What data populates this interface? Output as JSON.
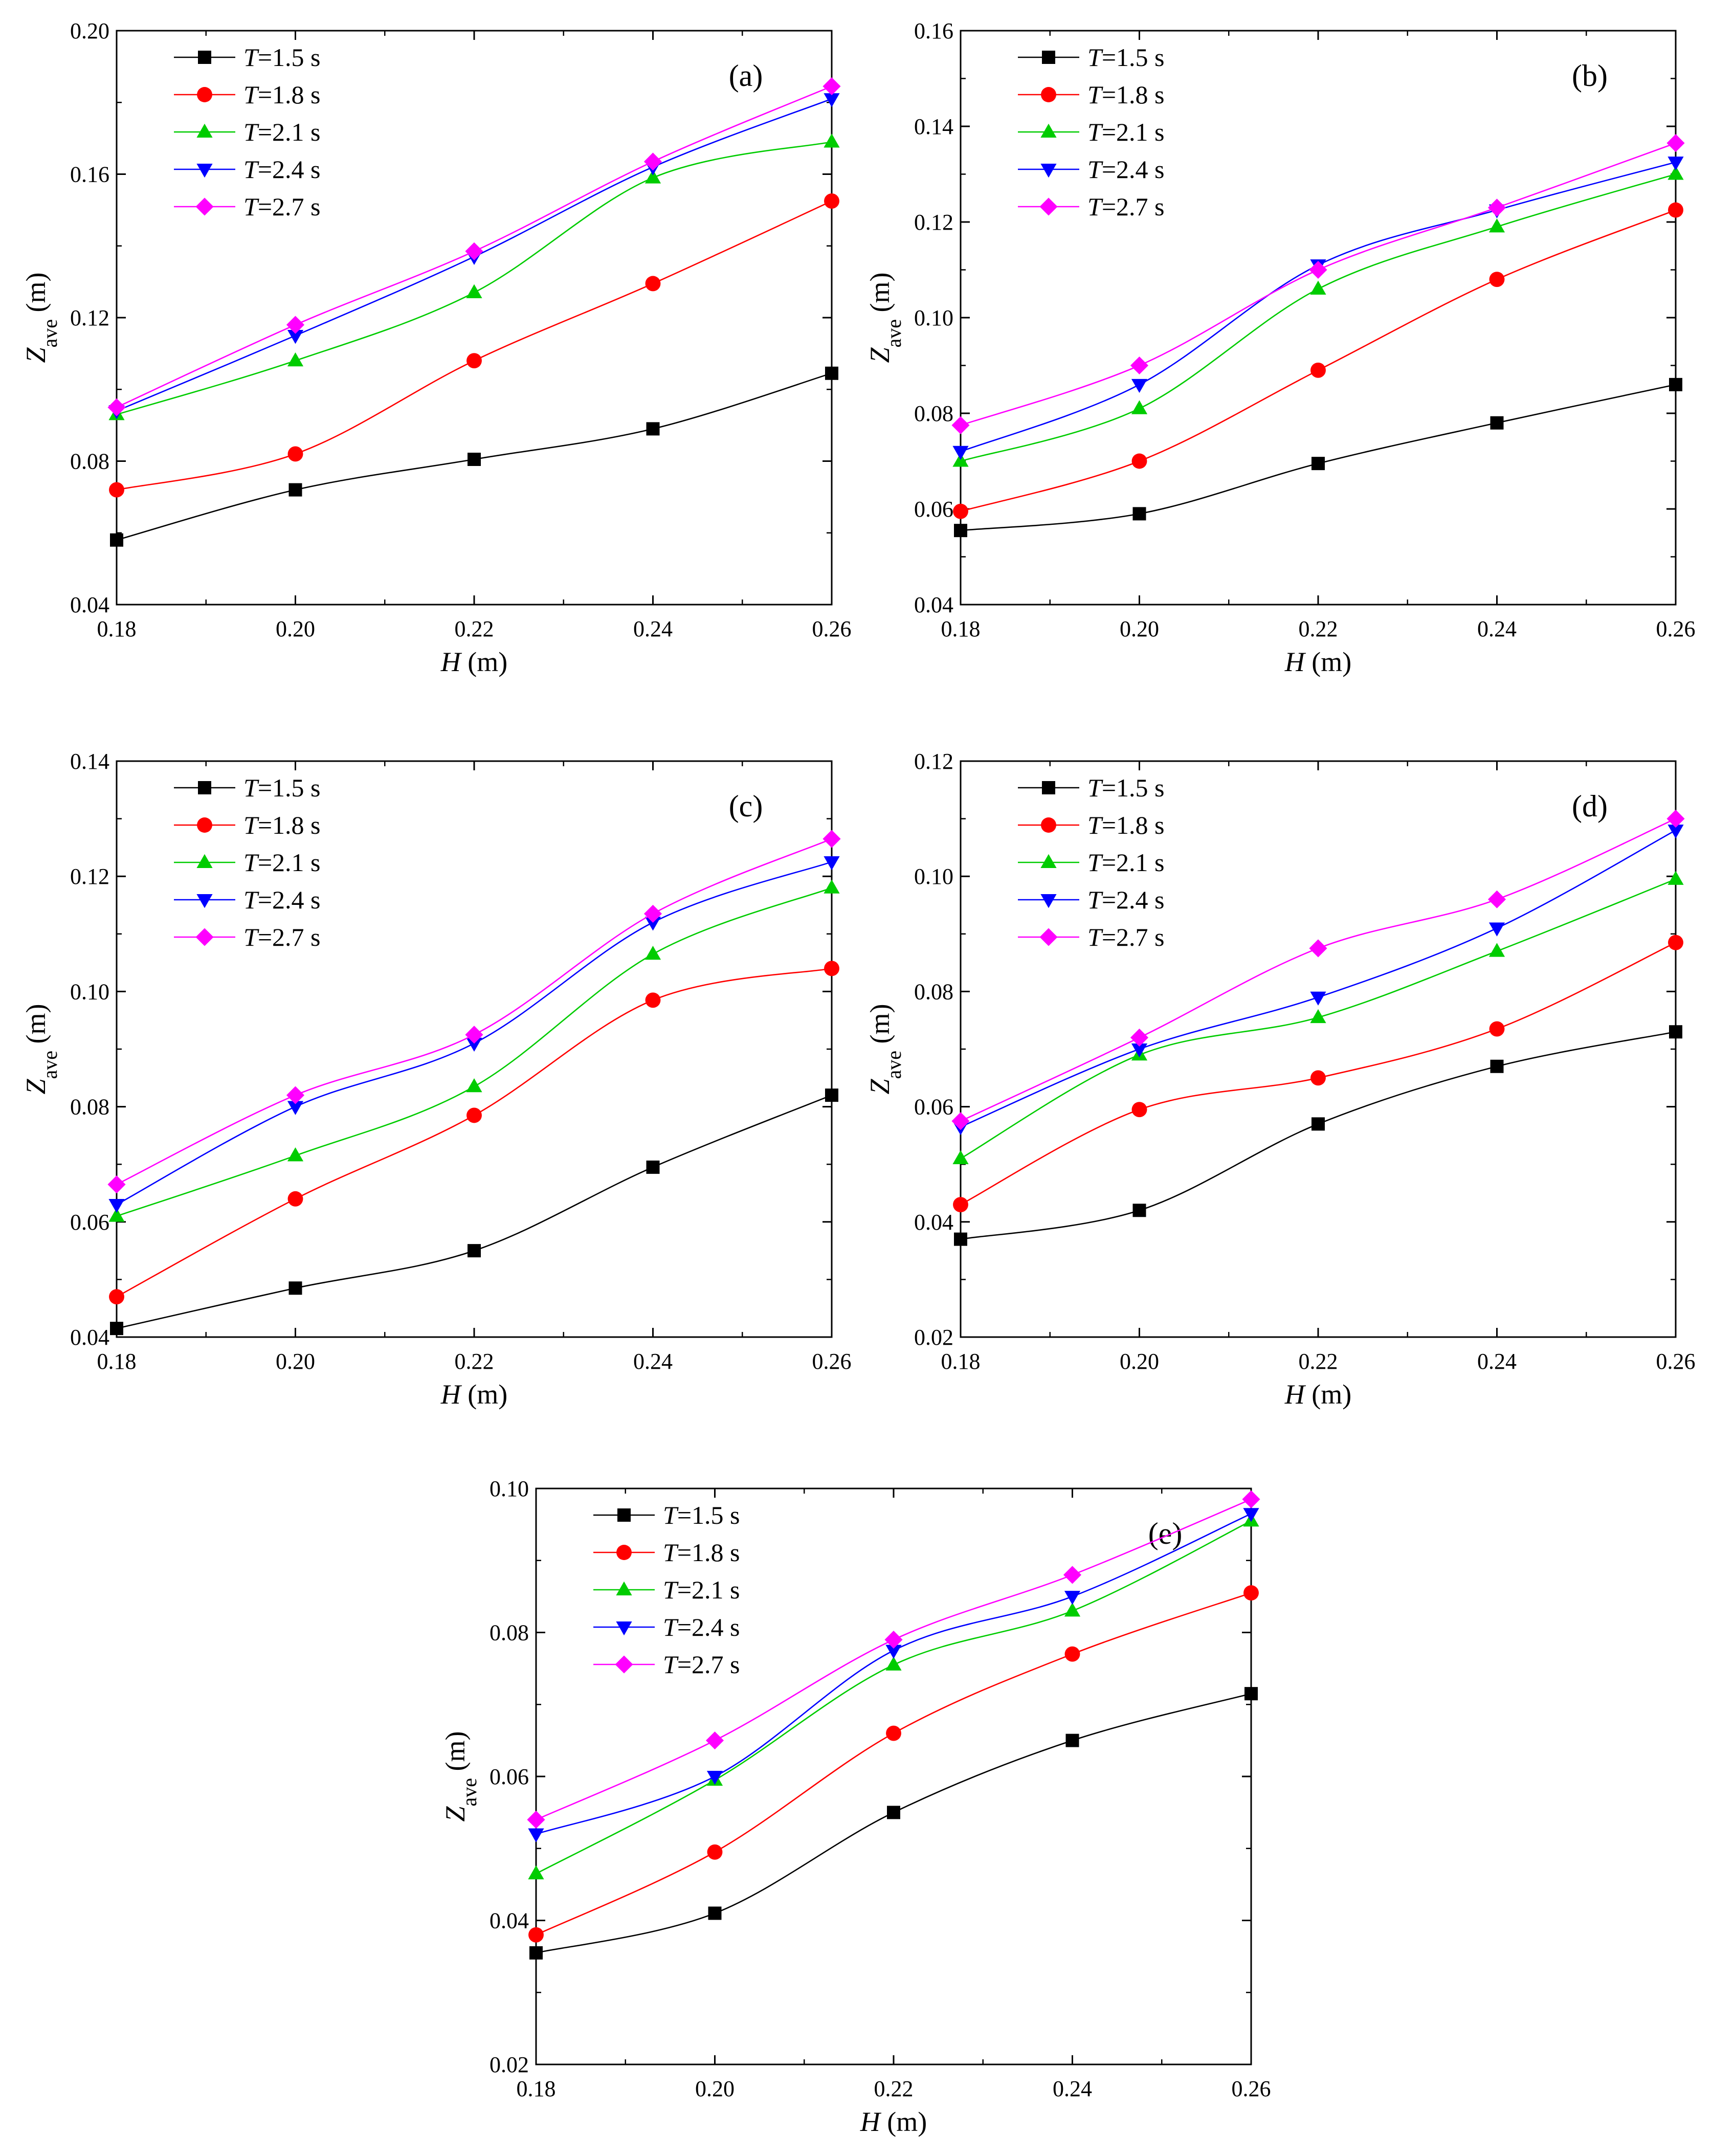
{
  "figure": {
    "x_axis_label": {
      "var": "H",
      "unit": " (m)"
    },
    "y_axis_label": {
      "var": "Z",
      "sub": "ave",
      "unit": " (m)"
    },
    "legend_var": "T",
    "legend_unit": " s",
    "colors": {
      "T=1.5 s": "#000000",
      "T=1.8 s": "#ff0000",
      "T=2.1 s": "#00cc00",
      "T=2.4 s": "#0000ff",
      "T=2.7 s": "#ff00ff"
    },
    "markers": {
      "T=1.5 s": "square",
      "T=1.8 s": "circle",
      "T=2.1 s": "triangle-up",
      "T=2.4 s": "triangle-down",
      "T=2.7 s": "diamond"
    }
  },
  "chart_data": [
    {
      "type": "line",
      "panel": "(a)",
      "xlabel": "H (m)",
      "ylabel": "Zave (m)",
      "x": [
        0.18,
        0.2,
        0.22,
        0.24,
        0.26
      ],
      "xlim": [
        0.18,
        0.26
      ],
      "ylim": [
        0.04,
        0.2
      ],
      "xticks": [
        "0.18",
        "0.20",
        "0.22",
        "0.24",
        "0.26"
      ],
      "yticks": [
        "0.04",
        "0.08",
        "0.12",
        "0.16",
        "0.20"
      ],
      "legend_position": "top-left",
      "series": [
        {
          "name": "T=1.5 s",
          "T": "1.5",
          "values": [
            0.058,
            0.072,
            0.0805,
            0.089,
            0.1045
          ]
        },
        {
          "name": "T=1.8 s",
          "T": "1.8",
          "values": [
            0.072,
            0.082,
            0.108,
            0.1295,
            0.1525
          ]
        },
        {
          "name": "T=2.1 s",
          "T": "2.1",
          "values": [
            0.093,
            0.108,
            0.127,
            0.159,
            0.169
          ]
        },
        {
          "name": "T=2.4 s",
          "T": "2.4",
          "values": [
            0.094,
            0.115,
            0.137,
            0.162,
            0.181
          ]
        },
        {
          "name": "T=2.7 s",
          "T": "2.7",
          "values": [
            0.095,
            0.118,
            0.1385,
            0.1635,
            0.1845
          ]
        }
      ]
    },
    {
      "type": "line",
      "panel": "(b)",
      "xlabel": "H (m)",
      "ylabel": "Zave (m)",
      "x": [
        0.18,
        0.2,
        0.22,
        0.24,
        0.26
      ],
      "xlim": [
        0.18,
        0.26
      ],
      "ylim": [
        0.04,
        0.16
      ],
      "xticks": [
        "0.18",
        "0.20",
        "0.22",
        "0.24",
        "0.26"
      ],
      "yticks": [
        "0.04",
        "0.06",
        "0.08",
        "0.10",
        "0.12",
        "0.14",
        "0.16"
      ],
      "legend_position": "top-left",
      "series": [
        {
          "name": "T=1.5 s",
          "T": "1.5",
          "values": [
            0.0555,
            0.059,
            0.0695,
            0.078,
            0.086
          ]
        },
        {
          "name": "T=1.8 s",
          "T": "1.8",
          "values": [
            0.0595,
            0.07,
            0.089,
            0.108,
            0.1225
          ]
        },
        {
          "name": "T=2.1 s",
          "T": "2.1",
          "values": [
            0.07,
            0.081,
            0.106,
            0.119,
            0.13
          ]
        },
        {
          "name": "T=2.4 s",
          "T": "2.4",
          "values": [
            0.072,
            0.086,
            0.111,
            0.1225,
            0.1325
          ]
        },
        {
          "name": "T=2.7 s",
          "T": "2.7",
          "values": [
            0.0775,
            0.09,
            0.11,
            0.123,
            0.1365
          ]
        }
      ]
    },
    {
      "type": "line",
      "panel": "(c)",
      "xlabel": "H (m)",
      "ylabel": "Zave (m)",
      "x": [
        0.18,
        0.2,
        0.22,
        0.24,
        0.26
      ],
      "xlim": [
        0.18,
        0.26
      ],
      "ylim": [
        0.04,
        0.14
      ],
      "xticks": [
        "0.18",
        "0.20",
        "0.22",
        "0.24",
        "0.26"
      ],
      "yticks": [
        "0.04",
        "0.06",
        "0.08",
        "0.10",
        "0.12",
        "0.14"
      ],
      "legend_position": "top-left",
      "series": [
        {
          "name": "T=1.5 s",
          "T": "1.5",
          "values": [
            0.0415,
            0.0485,
            0.055,
            0.0695,
            0.082
          ]
        },
        {
          "name": "T=1.8 s",
          "T": "1.8",
          "values": [
            0.047,
            0.064,
            0.0785,
            0.0985,
            0.104
          ]
        },
        {
          "name": "T=2.1 s",
          "T": "2.1",
          "values": [
            0.061,
            0.0715,
            0.0835,
            0.1065,
            0.118
          ]
        },
        {
          "name": "T=2.4 s",
          "T": "2.4",
          "values": [
            0.063,
            0.08,
            0.091,
            0.112,
            0.1225
          ]
        },
        {
          "name": "T=2.7 s",
          "T": "2.7",
          "values": [
            0.0665,
            0.082,
            0.0925,
            0.1135,
            0.1265
          ]
        }
      ]
    },
    {
      "type": "line",
      "panel": "(d)",
      "xlabel": "H (m)",
      "ylabel": "Zave (m)",
      "x": [
        0.18,
        0.2,
        0.22,
        0.24,
        0.26
      ],
      "xlim": [
        0.18,
        0.26
      ],
      "ylim": [
        0.02,
        0.12
      ],
      "xticks": [
        "0.18",
        "0.20",
        "0.22",
        "0.24",
        "0.26"
      ],
      "yticks": [
        "0.02",
        "0.04",
        "0.06",
        "0.08",
        "0.10",
        "0.12"
      ],
      "legend_position": "top-left",
      "series": [
        {
          "name": "T=1.5 s",
          "T": "1.5",
          "values": [
            0.037,
            0.042,
            0.057,
            0.067,
            0.073
          ]
        },
        {
          "name": "T=1.8 s",
          "T": "1.8",
          "values": [
            0.043,
            0.0595,
            0.065,
            0.0735,
            0.0885
          ]
        },
        {
          "name": "T=2.1 s",
          "T": "2.1",
          "values": [
            0.051,
            0.069,
            0.0755,
            0.087,
            0.0995
          ]
        },
        {
          "name": "T=2.4 s",
          "T": "2.4",
          "values": [
            0.0565,
            0.07,
            0.079,
            0.091,
            0.108
          ]
        },
        {
          "name": "T=2.7 s",
          "T": "2.7",
          "values": [
            0.0575,
            0.072,
            0.0875,
            0.096,
            0.11
          ]
        }
      ]
    },
    {
      "type": "line",
      "panel": "(e)",
      "xlabel": "H (m)",
      "ylabel": "Zave (m)",
      "x": [
        0.18,
        0.2,
        0.22,
        0.24,
        0.26
      ],
      "xlim": [
        0.18,
        0.26
      ],
      "ylim": [
        0.02,
        0.1
      ],
      "xticks": [
        "0.18",
        "0.20",
        "0.22",
        "0.24",
        "0.26"
      ],
      "yticks": [
        "0.02",
        "0.04",
        "0.06",
        "0.08",
        "0.10"
      ],
      "legend_position": "top-left",
      "series": [
        {
          "name": "T=1.5 s",
          "T": "1.5",
          "values": [
            0.0355,
            0.041,
            0.055,
            0.065,
            0.0715
          ]
        },
        {
          "name": "T=1.8 s",
          "T": "1.8",
          "values": [
            0.038,
            0.0495,
            0.066,
            0.077,
            0.0855
          ]
        },
        {
          "name": "T=2.1 s",
          "T": "2.1",
          "values": [
            0.0465,
            0.0595,
            0.0755,
            0.083,
            0.0955
          ]
        },
        {
          "name": "T=2.4 s",
          "T": "2.4",
          "values": [
            0.052,
            0.06,
            0.0775,
            0.085,
            0.0965
          ]
        },
        {
          "name": "T=2.7 s",
          "T": "2.7",
          "values": [
            0.054,
            0.065,
            0.079,
            0.088,
            0.0985
          ]
        }
      ]
    }
  ]
}
